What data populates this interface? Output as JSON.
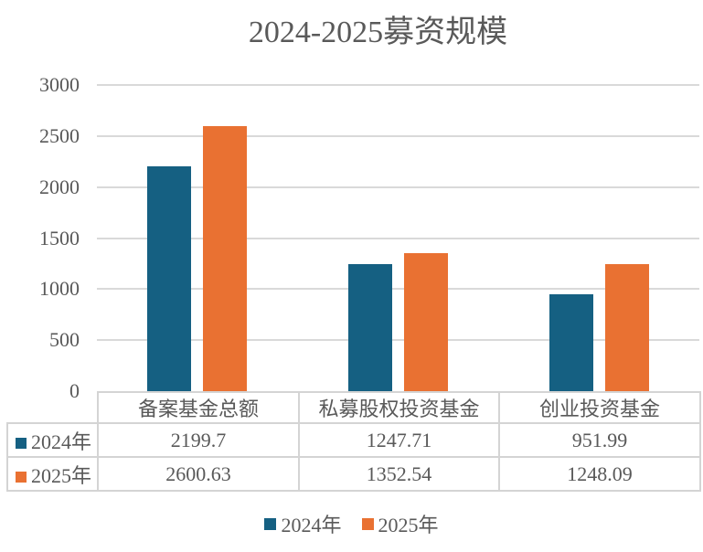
{
  "chart_data": {
    "type": "bar",
    "title": "2024-2025募资规模",
    "categories": [
      "备案基金总额",
      "私募股权投资基金",
      "创业投资基金"
    ],
    "series": [
      {
        "name": "2024年",
        "color": "#156082",
        "values": [
          2199.7,
          1247.71,
          951.99
        ]
      },
      {
        "name": "2025年",
        "color": "#E97132",
        "values": [
          2600.63,
          1352.54,
          1248.09
        ]
      }
    ],
    "y_axis": {
      "min": 0,
      "max": 3000,
      "step": 500,
      "ticks": [
        3000,
        2500,
        2000,
        1500,
        1000,
        500,
        0
      ]
    },
    "grid": true,
    "legend_position": "bottom",
    "table_shown": true,
    "colors": {
      "text": "#595959",
      "gridline": "#D9D9D9",
      "table_border": "#D4D4D4",
      "background": "#FFFFFF"
    }
  }
}
